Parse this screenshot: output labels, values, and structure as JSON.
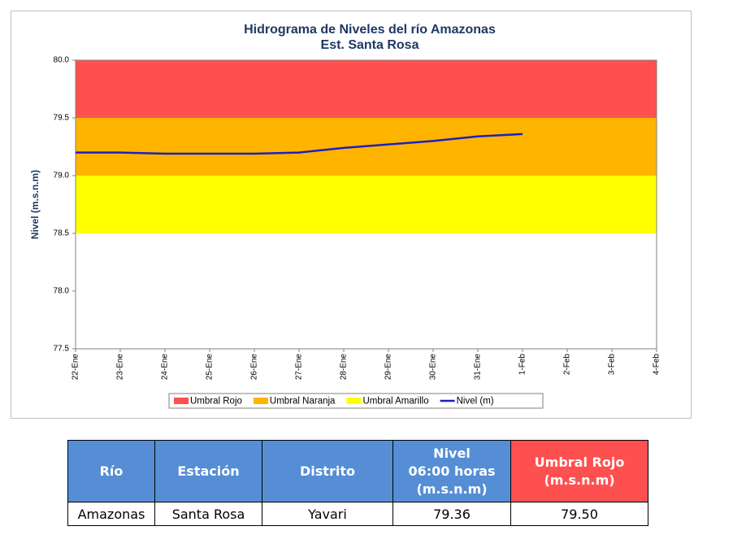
{
  "chart_data": {
    "type": "line",
    "title": [
      "Hidrograma de Niveles del río Amazonas",
      "Est. Santa Rosa"
    ],
    "y_label": "Nivel (m.s.n.m)",
    "categories": [
      "22-Ene",
      "23-Ene",
      "24-Ene",
      "25-Ene",
      "26-Ene",
      "27-Ene",
      "28-Ene",
      "29-Ene",
      "30-Ene",
      "31-Ene",
      "1-Feb",
      "2-Feb",
      "3-Feb",
      "4-Feb"
    ],
    "ylim": [
      77.5,
      80.0
    ],
    "yticks": [
      77.5,
      {
        "value": 78,
        "label": "78.0"
      },
      78.5,
      {
        "value": 79,
        "label": "79.0"
      },
      79.5,
      {
        "value": 80,
        "label": "80.0"
      }
    ],
    "bands": [
      {
        "name": "Umbral Rojo",
        "color": "#ff5050",
        "from": 79.5,
        "to": 80.0
      },
      {
        "name": "Umbral Naranja",
        "color": "#ffb400",
        "from": 79.0,
        "to": 79.5
      },
      {
        "name": "Umbral Amarillo",
        "color": "#ffff00",
        "from": 78.5,
        "to": 79.0
      }
    ],
    "series": [
      {
        "name": "Nivel (m)",
        "color": "#1f1fbf",
        "values": [
          79.2,
          79.2,
          79.19,
          79.19,
          79.19,
          79.2,
          79.24,
          79.27,
          79.3,
          79.34,
          79.36,
          null,
          null,
          null
        ]
      }
    ]
  },
  "table": {
    "headers": [
      [
        "Río"
      ],
      [
        "Estación"
      ],
      [
        "Distrito"
      ],
      [
        "Nivel",
        "06:00 horas",
        "(m.s.n.m)"
      ],
      [
        "Umbral Rojo",
        "(m.s.n.m)"
      ]
    ],
    "rows": [
      [
        "Amazonas",
        "Santa Rosa",
        "Yavari",
        "79.36",
        "79.50"
      ]
    ]
  }
}
